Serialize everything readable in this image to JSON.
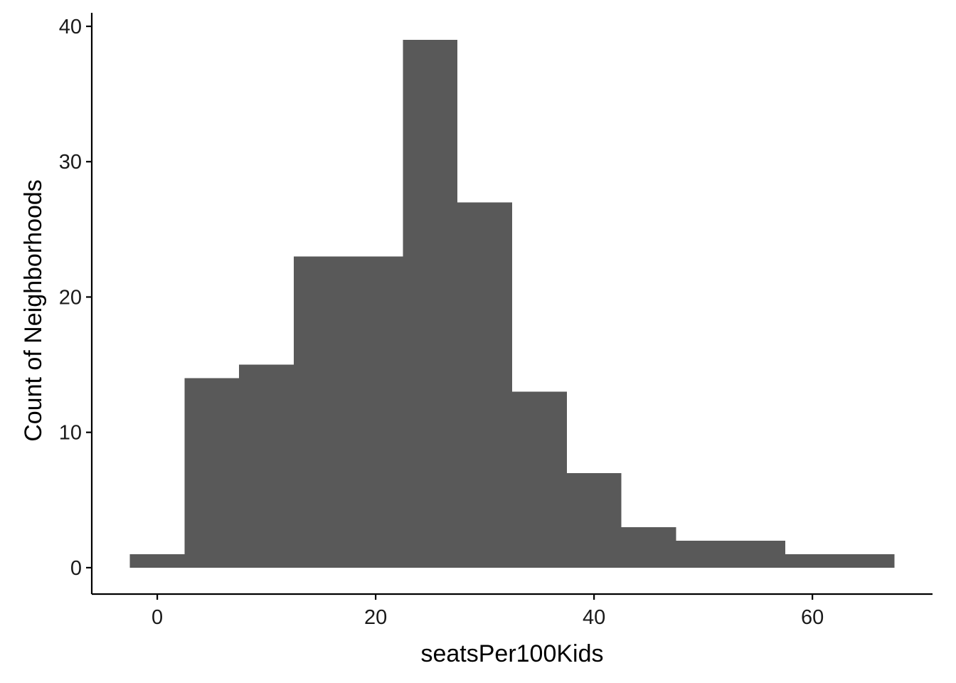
{
  "chart_data": {
    "type": "bar",
    "subtype": "histogram",
    "xlabel": "seatsPer100Kids",
    "ylabel": "Count of Neighborhoods",
    "bin_width": 5,
    "bins": [
      {
        "start": -2.5,
        "end": 2.5,
        "count": 1
      },
      {
        "start": 2.5,
        "end": 7.5,
        "count": 14
      },
      {
        "start": 7.5,
        "end": 12.5,
        "count": 15
      },
      {
        "start": 12.5,
        "end": 17.5,
        "count": 23
      },
      {
        "start": 17.5,
        "end": 22.5,
        "count": 23
      },
      {
        "start": 22.5,
        "end": 27.5,
        "count": 39
      },
      {
        "start": 27.5,
        "end": 32.5,
        "count": 27
      },
      {
        "start": 32.5,
        "end": 37.5,
        "count": 13
      },
      {
        "start": 37.5,
        "end": 42.5,
        "count": 7
      },
      {
        "start": 42.5,
        "end": 47.5,
        "count": 3
      },
      {
        "start": 47.5,
        "end": 52.5,
        "count": 2
      },
      {
        "start": 52.5,
        "end": 57.5,
        "count": 2
      },
      {
        "start": 57.5,
        "end": 62.5,
        "count": 1
      },
      {
        "start": 62.5,
        "end": 67.5,
        "count": 1
      }
    ],
    "xlim": [
      -6.0,
      71.0
    ],
    "ylim": [
      -1.95,
      41.0
    ],
    "xticks": [
      0,
      20,
      40,
      60
    ],
    "yticks": [
      0,
      10,
      20,
      30,
      40
    ],
    "bar_color": "#595959",
    "grid": false,
    "legend": "none"
  }
}
